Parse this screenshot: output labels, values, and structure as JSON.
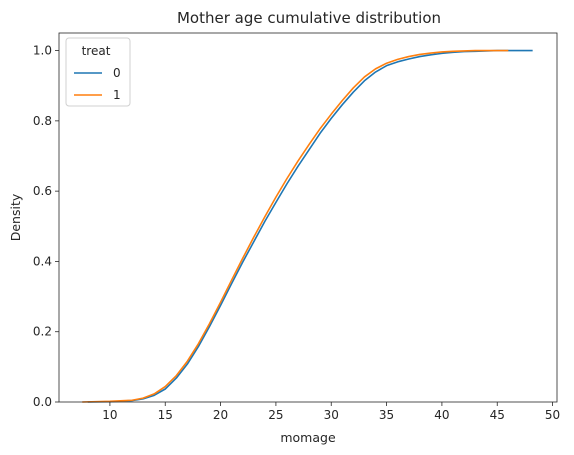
{
  "chart_data": {
    "type": "line",
    "title": "Mother age cumulative distribution",
    "xlabel": "momage",
    "ylabel": "Density",
    "xlim": [
      5.4,
      50.4
    ],
    "ylim": [
      0,
      1.05
    ],
    "xticks": [
      10,
      15,
      20,
      25,
      30,
      35,
      40,
      45,
      50
    ],
    "yticks": [
      0.0,
      0.2,
      0.4,
      0.6,
      0.8,
      1.0
    ],
    "grid": false,
    "legend": {
      "title": "treat",
      "placement": "top-left"
    },
    "series": [
      {
        "name": "0",
        "color": "#1f77b4",
        "x": [
          8,
          10,
          12,
          13,
          14,
          15,
          16,
          17,
          18,
          19,
          20,
          21,
          22,
          23,
          24,
          25,
          26,
          27,
          28,
          29,
          30,
          31,
          32,
          33,
          34,
          35,
          36,
          37,
          38,
          39,
          40,
          41,
          42,
          43,
          44,
          45,
          46,
          47,
          48.2
        ],
        "values": [
          0.0,
          0.001,
          0.004,
          0.009,
          0.019,
          0.037,
          0.068,
          0.108,
          0.158,
          0.215,
          0.275,
          0.337,
          0.398,
          0.456,
          0.514,
          0.568,
          0.621,
          0.671,
          0.718,
          0.765,
          0.807,
          0.846,
          0.882,
          0.914,
          0.939,
          0.957,
          0.968,
          0.976,
          0.983,
          0.988,
          0.992,
          0.995,
          0.997,
          0.998,
          0.999,
          1.0,
          1.0,
          1.0,
          1.0
        ]
      },
      {
        "name": "1",
        "color": "#ff7f0e",
        "x": [
          7.5,
          10,
          12,
          13,
          14,
          15,
          16,
          17,
          18,
          19,
          20,
          21,
          22,
          23,
          24,
          25,
          26,
          27,
          28,
          29,
          30,
          31,
          32,
          33,
          34,
          35,
          36,
          37,
          38,
          39,
          40,
          41,
          42,
          43,
          44,
          45,
          46
        ],
        "values": [
          0.0,
          0.002,
          0.005,
          0.011,
          0.023,
          0.044,
          0.075,
          0.116,
          0.166,
          0.223,
          0.284,
          0.347,
          0.409,
          0.469,
          0.527,
          0.583,
          0.636,
          0.686,
          0.733,
          0.778,
          0.819,
          0.858,
          0.894,
          0.925,
          0.948,
          0.964,
          0.975,
          0.983,
          0.989,
          0.993,
          0.996,
          0.998,
          0.999,
          1.0,
          1.0,
          1.0,
          1.0
        ]
      }
    ]
  }
}
